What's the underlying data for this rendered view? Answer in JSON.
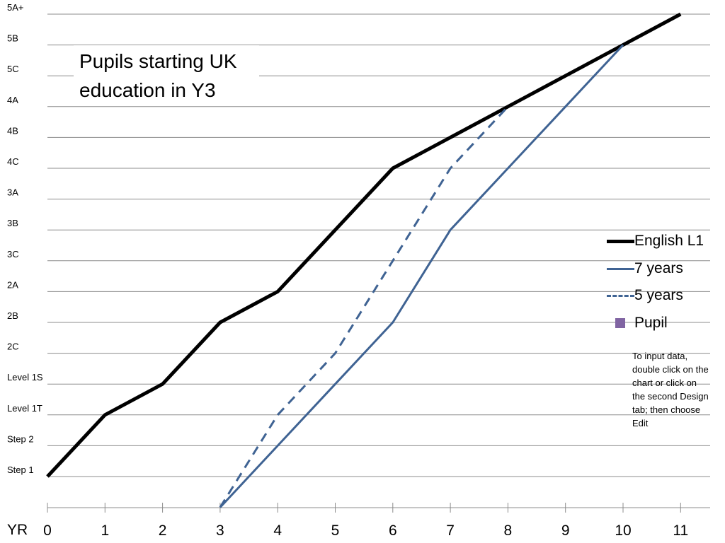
{
  "chart_data": {
    "type": "line",
    "title": "Pupils starting UK education in Y3",
    "x_axis_label": "YR",
    "x": [
      0,
      1,
      2,
      3,
      4,
      5,
      6,
      7,
      8,
      9,
      10,
      11
    ],
    "y_levels": [
      "Step 1",
      "Step 2",
      "Level 1T",
      "Level 1S",
      "2C",
      "2B",
      "2A",
      "3C",
      "3B",
      "3A",
      "4C",
      "4B",
      "4A",
      "5C",
      "5B",
      "5A+"
    ],
    "series": [
      {
        "name": "English L1",
        "color": "#000000",
        "style": "solid",
        "points": [
          [
            0,
            "Step 1"
          ],
          [
            1,
            "Level 1T"
          ],
          [
            2,
            "Level 1S"
          ],
          [
            3,
            "2B"
          ],
          [
            4,
            "2A"
          ],
          [
            5,
            "3B"
          ],
          [
            6,
            "4C"
          ],
          [
            7,
            "4B"
          ],
          [
            8,
            "4A"
          ],
          [
            9,
            "5C"
          ],
          [
            10,
            "5B"
          ],
          [
            11,
            "5A+"
          ]
        ]
      },
      {
        "name": "7 years",
        "color": "#3f6393",
        "style": "solid",
        "points": [
          [
            3,
            -1
          ],
          [
            4,
            "Step 2"
          ],
          [
            5,
            "Level 1S"
          ],
          [
            6,
            "2B"
          ],
          [
            7,
            "3B"
          ],
          [
            8,
            "4C"
          ],
          [
            9,
            "4A"
          ],
          [
            10,
            "5B"
          ]
        ]
      },
      {
        "name": "5 years",
        "color": "#3f6393",
        "style": "dashed",
        "points": [
          [
            3,
            -1
          ],
          [
            4,
            "Level 1T"
          ],
          [
            5,
            "2C"
          ],
          [
            6,
            "3C"
          ],
          [
            7,
            "4C"
          ],
          [
            8,
            "4A"
          ]
        ]
      },
      {
        "name": "Pupil",
        "color": "#8064a2",
        "style": "marker",
        "points": []
      }
    ],
    "grid": true,
    "legend_position": "right"
  },
  "note": "To input data, double click on the chart or click on the second Design tab; then choose Edit"
}
